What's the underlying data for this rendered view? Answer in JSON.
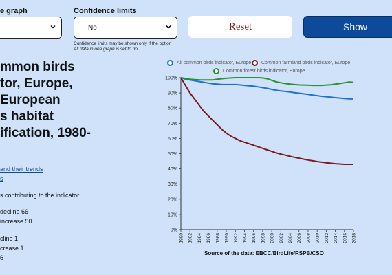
{
  "controls": {
    "graph_label": "e graph",
    "confidence_label": "Confidence limits",
    "confidence_value": "No",
    "confidence_hint": "Confidence limits may be shown only if the option",
    "confidence_hint2": "All data in one graph is set to no.",
    "reset_label": "Reset",
    "show_label": "Show"
  },
  "sidebar": {
    "title_lines": [
      "mmon birds",
      "tor, Europe,",
      "European",
      "s habitat",
      "ification, 1980-"
    ],
    "links": [
      "and their trends",
      "s"
    ],
    "intro": "s contributing to the indicator:",
    "stats": [
      "decline 66",
      "increase 50",
      "cline 1",
      "crease 1",
      "6"
    ]
  },
  "chart_data": {
    "type": "line",
    "x": [
      1980,
      1981,
      1982,
      1983,
      1984,
      1985,
      1986,
      1987,
      1988,
      1989,
      1990,
      1991,
      1992,
      1993,
      1994,
      1995,
      1996,
      1997,
      1998,
      1999,
      2000,
      2001,
      2002,
      2003,
      2004,
      2005,
      2006,
      2007,
      2008,
      2009,
      2010,
      2011,
      2012,
      2013,
      2014,
      2015,
      2016,
      2017,
      2018
    ],
    "xticks": [
      1980,
      1982,
      1984,
      1986,
      1988,
      1990,
      1992,
      1994,
      1996,
      1998,
      2000,
      2002,
      2004,
      2006,
      2008,
      2010,
      2012,
      2014,
      2016,
      2018
    ],
    "yticks": [
      0,
      10,
      20,
      30,
      40,
      50,
      60,
      70,
      80,
      90,
      100
    ],
    "ytick_suffix": "%",
    "ylim": [
      0,
      100
    ],
    "series": [
      {
        "name": "All common birds indicator, Europe",
        "color": "#1f6fd6",
        "values": [
          100,
          99,
          98.5,
          98,
          97.5,
          97,
          96.5,
          96,
          95.8,
          95.5,
          95.5,
          95.5,
          95.5,
          95.3,
          95,
          94.7,
          94.5,
          94,
          93.5,
          93,
          92.3,
          91.7,
          91.3,
          91,
          90.6,
          90.2,
          89.8,
          89.4,
          89,
          88.6,
          88.2,
          87.8,
          87.5,
          87.2,
          86.9,
          86.6,
          86.3,
          86.1,
          86
        ]
      },
      {
        "name": "Common farmland birds indicator, Europe",
        "color": "#7a1a1a",
        "values": [
          100,
          95,
          90,
          86,
          82,
          78,
          75,
          72,
          69,
          66,
          63.5,
          61.5,
          60,
          58.5,
          57.5,
          56.5,
          55.5,
          54.5,
          53.5,
          52.5,
          51.5,
          50.5,
          49.7,
          49,
          48.3,
          47.6,
          47,
          46.4,
          45.8,
          45.3,
          44.8,
          44.4,
          44,
          43.7,
          43.4,
          43.2,
          43,
          43,
          43
        ]
      },
      {
        "name": "Common forest birds indicator, Europe",
        "color": "#27922e",
        "values": [
          100,
          99.5,
          99,
          98.8,
          98.6,
          98.5,
          98.5,
          98.5,
          99,
          99.3,
          99.6,
          99.8,
          100,
          100,
          100,
          100,
          100,
          100,
          99.8,
          99.3,
          98.3,
          97.3,
          96.7,
          96.2,
          95.8,
          95.5,
          95.3,
          95.2,
          95.1,
          95,
          95,
          95,
          95.2,
          95.4,
          95.8,
          96.2,
          96.7,
          97.2,
          97
        ]
      }
    ],
    "source": "Source of the data: EBCC/BirdLife/RSPB/CSO"
  }
}
